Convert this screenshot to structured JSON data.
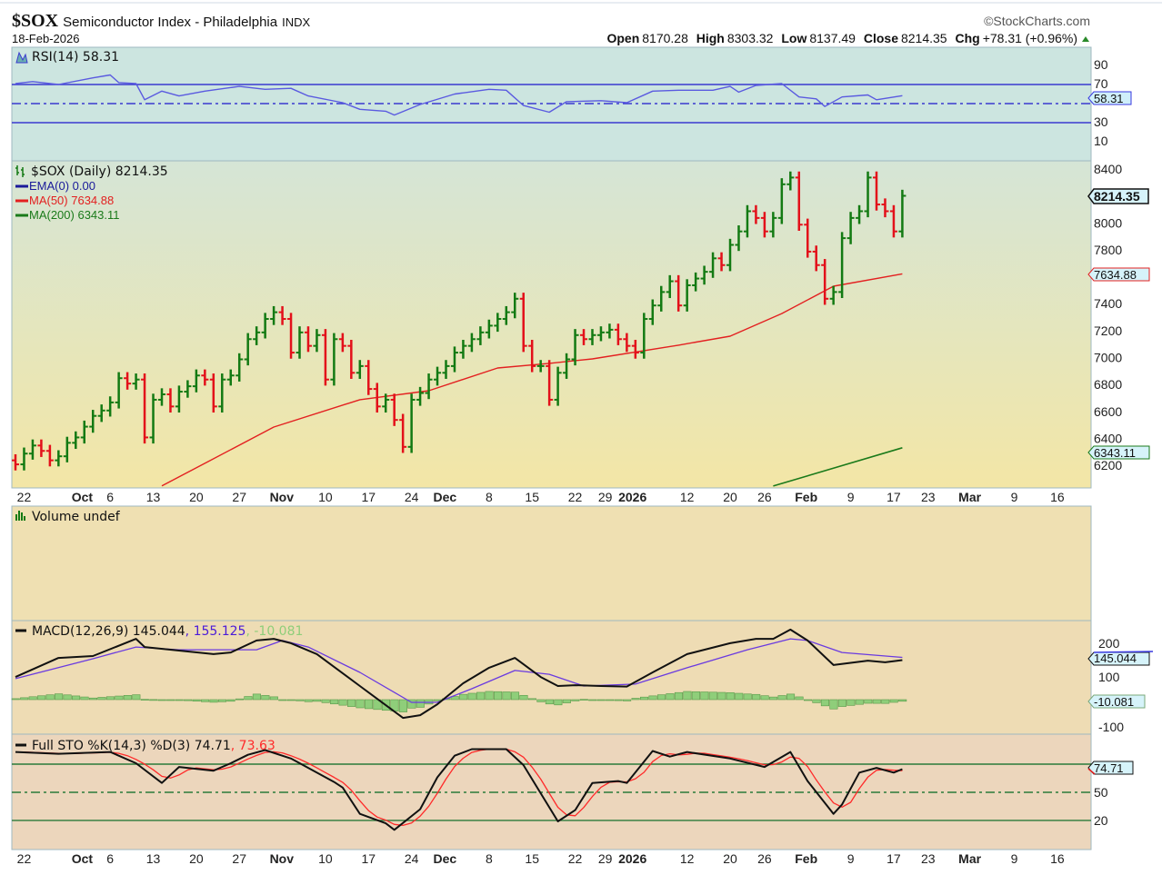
{
  "header": {
    "symbol": "$SOX",
    "name": "Semiconductor Index - Philadelphia",
    "exchange": "INDX",
    "date": "18-Feb-2026",
    "brand": "©StockCharts.com",
    "open_label": "Open",
    "open": "8170.28",
    "high_label": "High",
    "high": "8303.32",
    "low_label": "Low",
    "low": "8137.49",
    "close_label": "Close",
    "close": "8214.35",
    "chg_label": "Chg",
    "chg": "+78.31 (+0.96%)",
    "chg_icon": "triangle-up-icon"
  },
  "colors": {
    "up": "#137a13",
    "down": "#e3101a",
    "ma50": "#e32020",
    "ma200": "#1a7a1a",
    "rsi": "#5a5ae0",
    "macd": "#111111",
    "signal": "#6a3ae0",
    "hist": "#8fce7a",
    "stoK": "#111111",
    "stoD": "#ff2a2a"
  },
  "legend": {
    "rsi": "RSI(14) 58.31",
    "price": "$SOX (Daily) 8214.35",
    "ema": "EMA(0) 0.00",
    "ma50": "MA(50) 7634.88",
    "ma200": "MA(200) 6343.11",
    "volume": "Volume undef",
    "macd_name": "MACD(12,26,9) 145.044",
    "macd_signal": ", 155.125",
    "macd_hist": ", -10.081",
    "sto_name": "Full STO %K(14,3) %D(3) 74.71",
    "sto_d": ", 73.63"
  },
  "tags": {
    "rsi": "58.31",
    "price": "8214.35",
    "ma50": "7634.88",
    "ma200": "6343.11",
    "macd": "145.044",
    "hist": "-10.081",
    "sto": "74.71"
  },
  "chart_data": {
    "type": "ohlc",
    "title": "$SOX Semiconductor Index - Philadelphia",
    "x_ticks": [
      {
        "label": "22",
        "i": 1,
        "bold": false
      },
      {
        "label": "Oct",
        "i": 8,
        "bold": true
      },
      {
        "label": "6",
        "i": 11,
        "bold": false
      },
      {
        "label": "13",
        "i": 16,
        "bold": false
      },
      {
        "label": "20",
        "i": 21,
        "bold": false
      },
      {
        "label": "27",
        "i": 26,
        "bold": false
      },
      {
        "label": "Nov",
        "i": 31,
        "bold": true
      },
      {
        "label": "10",
        "i": 36,
        "bold": false
      },
      {
        "label": "17",
        "i": 41,
        "bold": false
      },
      {
        "label": "24",
        "i": 46,
        "bold": false
      },
      {
        "label": "Dec",
        "i": 50,
        "bold": true
      },
      {
        "label": "8",
        "i": 55,
        "bold": false
      },
      {
        "label": "15",
        "i": 60,
        "bold": false
      },
      {
        "label": "22",
        "i": 65,
        "bold": false
      },
      {
        "label": "29",
        "i": 68.5,
        "bold": false
      },
      {
        "label": "2026",
        "i": 71.5,
        "bold": true
      },
      {
        "label": "12",
        "i": 78,
        "bold": false
      },
      {
        "label": "20",
        "i": 83,
        "bold": false
      },
      {
        "label": "26",
        "i": 87,
        "bold": false
      },
      {
        "label": "Feb",
        "i": 92,
        "bold": true
      },
      {
        "label": "9",
        "i": 97,
        "bold": false
      },
      {
        "label": "17",
        "i": 102,
        "bold": false
      },
      {
        "label": "23",
        "i": 106,
        "bold": false
      },
      {
        "label": "Mar",
        "i": 111,
        "bold": true
      },
      {
        "label": "9",
        "i": 116,
        "bold": false
      },
      {
        "label": "16",
        "i": 121,
        "bold": false
      }
    ],
    "price_ticks": [
      8400,
      8000,
      7800,
      7400,
      7200,
      7000,
      6800,
      6600,
      6400,
      6200
    ],
    "closes": [
      6220,
      6300,
      6360,
      6320,
      6250,
      6280,
      6380,
      6420,
      6500,
      6580,
      6620,
      6680,
      6860,
      6820,
      6850,
      6420,
      6700,
      6740,
      6650,
      6760,
      6800,
      6880,
      6850,
      6650,
      6850,
      6880,
      7000,
      7150,
      7200,
      7300,
      7350,
      7300,
      7050,
      7200,
      7100,
      7180,
      6850,
      7150,
      7100,
      6900,
      6950,
      6780,
      6650,
      6700,
      6550,
      6350,
      6700,
      6750,
      6850,
      6900,
      6950,
      7050,
      7100,
      7150,
      7200,
      7250,
      7300,
      7350,
      7450,
      7100,
      6950,
      6950,
      6700,
      6900,
      7000,
      7180,
      7150,
      7180,
      7200,
      7220,
      7150,
      7100,
      7050,
      7300,
      7400,
      7500,
      7580,
      7400,
      7550,
      7600,
      7650,
      7750,
      7700,
      7850,
      7950,
      8100,
      8050,
      7950,
      8050,
      8300,
      8350,
      8000,
      7800,
      7700,
      7450,
      7500,
      7900,
      8050,
      8100,
      8350,
      8150,
      8100,
      7950,
      8214.35
    ],
    "ma50": [
      [
        17,
        6060
      ],
      [
        30,
        6497
      ],
      [
        40,
        6700
      ],
      [
        48,
        6767
      ],
      [
        56,
        6936
      ],
      [
        62,
        6970
      ],
      [
        67,
        7003
      ],
      [
        77,
        7105
      ],
      [
        83,
        7172
      ],
      [
        89,
        7340
      ],
      [
        95,
        7543
      ],
      [
        103,
        7634.88
      ]
    ],
    "ma200": [
      [
        88,
        6059
      ],
      [
        103,
        6343.11
      ]
    ],
    "rsi": {
      "levels": [
        70,
        50,
        30
      ],
      "ticks": [
        90,
        70,
        30,
        10
      ],
      "points": [
        [
          0,
          71
        ],
        [
          2,
          73
        ],
        [
          5,
          70
        ],
        [
          9,
          77
        ],
        [
          11,
          80
        ],
        [
          12,
          72
        ],
        [
          14,
          71
        ],
        [
          15,
          54
        ],
        [
          17,
          63
        ],
        [
          19,
          58
        ],
        [
          22,
          63
        ],
        [
          26,
          68
        ],
        [
          29,
          65
        ],
        [
          32,
          66
        ],
        [
          34,
          58
        ],
        [
          38,
          51
        ],
        [
          40,
          44
        ],
        [
          43,
          42
        ],
        [
          44,
          38
        ],
        [
          47,
          49
        ],
        [
          51,
          60
        ],
        [
          55,
          65
        ],
        [
          57,
          64
        ],
        [
          59,
          48
        ],
        [
          62,
          41
        ],
        [
          64,
          52
        ],
        [
          68,
          53
        ],
        [
          71,
          51
        ],
        [
          74,
          63
        ],
        [
          77,
          64
        ],
        [
          81,
          64
        ],
        [
          83,
          68
        ],
        [
          84,
          62
        ],
        [
          86,
          69
        ],
        [
          89,
          71
        ],
        [
          91,
          57
        ],
        [
          93,
          55
        ],
        [
          94,
          47
        ],
        [
          96,
          57
        ],
        [
          99,
          59
        ],
        [
          100,
          54
        ],
        [
          103,
          58.31
        ]
      ]
    },
    "macd": {
      "ticks": [
        200,
        100,
        -100
      ],
      "macd": [
        [
          0,
          83
        ],
        [
          5,
          153
        ],
        [
          9,
          160
        ],
        [
          14,
          223
        ],
        [
          15,
          193
        ],
        [
          19,
          180
        ],
        [
          23,
          167
        ],
        [
          25,
          173
        ],
        [
          28,
          217
        ],
        [
          30,
          223
        ],
        [
          32,
          207
        ],
        [
          35,
          167
        ],
        [
          40,
          50
        ],
        [
          45,
          -67
        ],
        [
          47,
          -57
        ],
        [
          49,
          -17
        ],
        [
          52,
          60
        ],
        [
          55,
          117
        ],
        [
          58,
          153
        ],
        [
          61,
          83
        ],
        [
          63,
          50
        ],
        [
          65,
          53
        ],
        [
          68,
          50
        ],
        [
          71,
          48
        ],
        [
          74,
          100
        ],
        [
          78,
          167
        ],
        [
          83,
          207
        ],
        [
          86,
          223
        ],
        [
          88,
          223
        ],
        [
          90,
          257
        ],
        [
          92,
          217
        ],
        [
          95,
          127
        ],
        [
          99,
          143
        ],
        [
          101,
          137
        ],
        [
          103,
          145.044
        ]
      ],
      "signal": [
        [
          0,
          77
        ],
        [
          9,
          150
        ],
        [
          14,
          193
        ],
        [
          19,
          183
        ],
        [
          28,
          183
        ],
        [
          31,
          217
        ],
        [
          34,
          193
        ],
        [
          40,
          100
        ],
        [
          46,
          -10
        ],
        [
          49,
          -10
        ],
        [
          53,
          40
        ],
        [
          58,
          107
        ],
        [
          62,
          93
        ],
        [
          66,
          50
        ],
        [
          72,
          57
        ],
        [
          78,
          117
        ],
        [
          85,
          183
        ],
        [
          90,
          223
        ],
        [
          92,
          217
        ],
        [
          96,
          173
        ],
        [
          103,
          155.125
        ]
      ]
    },
    "sto": {
      "levels": [
        80,
        50,
        20
      ],
      "ticks": [
        50,
        20
      ],
      "k": [
        [
          0,
          93
        ],
        [
          5,
          91
        ],
        [
          11,
          93
        ],
        [
          14,
          81
        ],
        [
          17,
          60
        ],
        [
          19,
          77
        ],
        [
          23,
          73
        ],
        [
          25,
          81
        ],
        [
          27,
          90
        ],
        [
          29,
          95
        ],
        [
          32,
          86
        ],
        [
          37,
          61
        ],
        [
          38,
          55
        ],
        [
          40,
          27
        ],
        [
          43,
          17
        ],
        [
          44,
          10
        ],
        [
          47,
          32
        ],
        [
          49,
          66
        ],
        [
          51,
          89
        ],
        [
          53,
          96
        ],
        [
          57,
          96
        ],
        [
          59,
          79
        ],
        [
          63,
          19
        ],
        [
          65,
          31
        ],
        [
          67,
          60
        ],
        [
          70,
          62
        ],
        [
          71,
          60
        ],
        [
          74,
          94
        ],
        [
          76,
          88
        ],
        [
          78,
          93
        ],
        [
          83,
          86
        ],
        [
          87,
          77
        ],
        [
          90,
          93
        ],
        [
          92,
          62
        ],
        [
          95,
          27
        ],
        [
          96,
          37
        ],
        [
          98,
          71
        ],
        [
          100,
          76
        ],
        [
          102,
          71
        ],
        [
          103,
          74.71
        ]
      ]
    }
  }
}
